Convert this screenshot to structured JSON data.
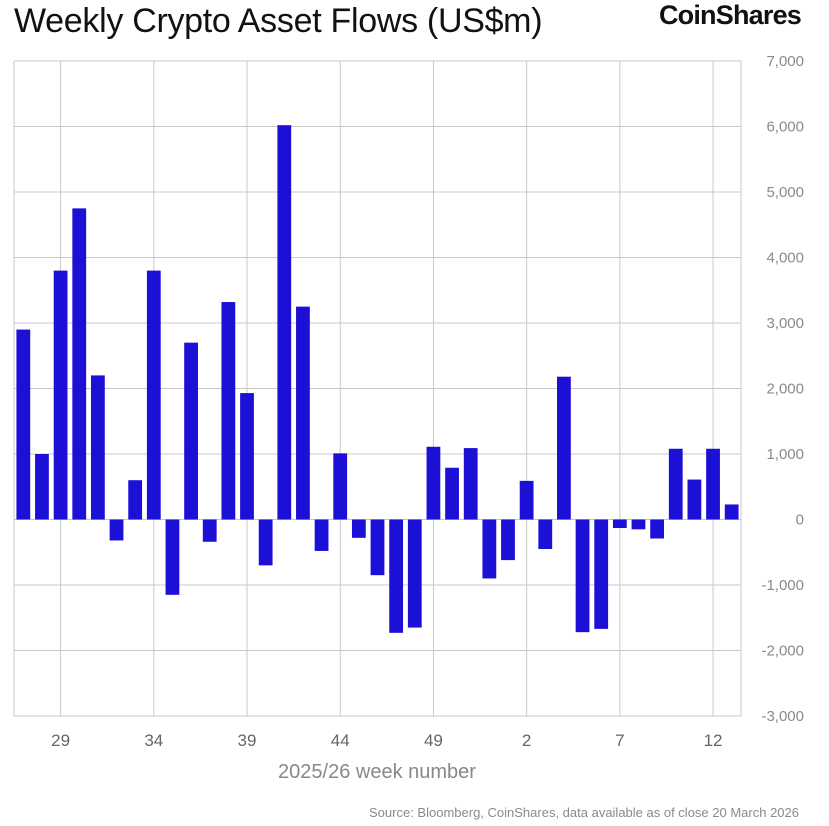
{
  "chart_data": {
    "type": "bar",
    "title": "Weekly Crypto Asset Flows (US$m)",
    "xlabel": "2025/26 week number",
    "ylabel": "",
    "ylim": [
      -3000,
      7000
    ],
    "yticks": [
      7000,
      6000,
      5000,
      4000,
      3000,
      2000,
      1000,
      0,
      -1000,
      -2000,
      -3000
    ],
    "ytick_labels": [
      "7,000",
      "6,000",
      "5,000",
      "4,000",
      "3,000",
      "2,000",
      "1,000",
      "0",
      "-1,000",
      "-2,000",
      "-3,000"
    ],
    "x_tick_labels": [
      "29",
      "34",
      "39",
      "44",
      "49",
      "2",
      "7",
      "12"
    ],
    "categories": [
      "27",
      "28",
      "29",
      "30",
      "31",
      "32",
      "33",
      "34",
      "35",
      "36",
      "37",
      "38",
      "39",
      "40",
      "41",
      "42",
      "43",
      "44",
      "45",
      "46",
      "47",
      "48",
      "49",
      "50",
      "51",
      "52",
      "1",
      "2",
      "3",
      "4",
      "5",
      "6",
      "7",
      "8",
      "9",
      "10",
      "11",
      "12",
      "13"
    ],
    "values": [
      2900,
      1000,
      3800,
      4750,
      2200,
      -320,
      600,
      3800,
      -1150,
      2700,
      -340,
      3320,
      1930,
      -700,
      6020,
      3250,
      -480,
      1010,
      -280,
      -850,
      -1730,
      -1650,
      1110,
      790,
      1090,
      -900,
      -620,
      590,
      -450,
      2180,
      -1720,
      -1670,
      -130,
      -150,
      -290,
      1080,
      610,
      1080,
      230
    ],
    "grid": true,
    "legend": "none",
    "bar_color": "#1d10d6",
    "axis_position": "right"
  },
  "brand": "CoinShares",
  "source": "Source: Bloomberg, CoinShares, data available as of close 20 March 2026"
}
